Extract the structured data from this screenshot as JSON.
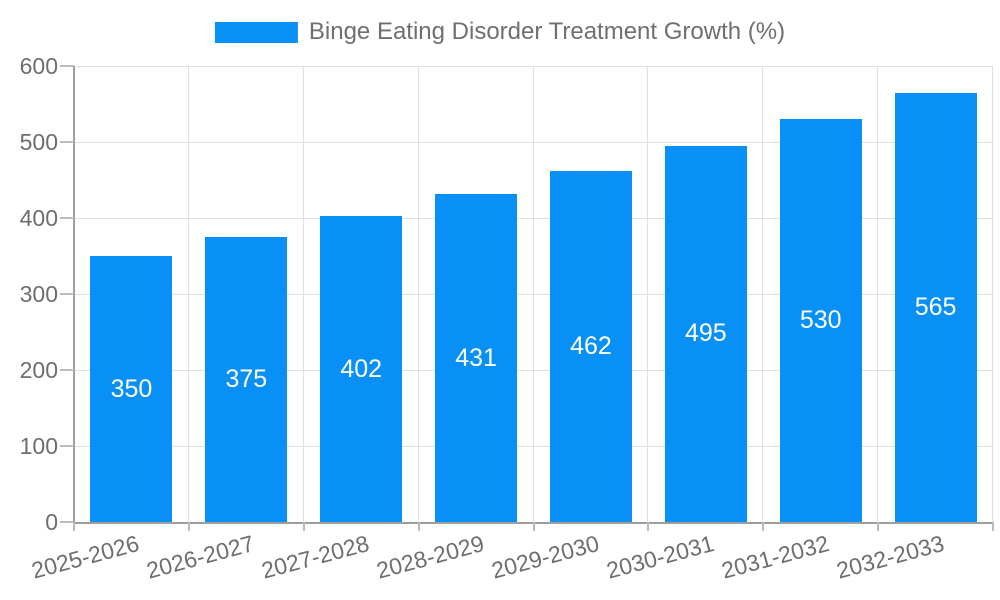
{
  "legend": {
    "label": "Binge Eating Disorder Treatment Growth (%)"
  },
  "chart_data": {
    "type": "bar",
    "title": "Binge Eating Disorder Treatment Growth (%)",
    "series_name": "Binge Eating Disorder Treatment Growth (%)",
    "categories": [
      "2025-2026",
      "2026-2027",
      "2027-2028",
      "2028-2029",
      "2029-2030",
      "2030-2031",
      "2031-2032",
      "2032-2033"
    ],
    "values": [
      350,
      375,
      402,
      431,
      462,
      495,
      530,
      565
    ],
    "xlabel": "",
    "ylabel": "",
    "ylim": [
      0,
      600
    ],
    "yticks": [
      0,
      100,
      200,
      300,
      400,
      500,
      600
    ],
    "grid": true,
    "legend_position": "top-center",
    "x_label_rotation_deg": -15,
    "colors": {
      "bar": "#0990f6",
      "value_label": "#ffffff",
      "axis_line": "#9e9e9e",
      "gridline": "#e0e0e0",
      "tick": "#bbbbbb",
      "axis_label": "#6e6e6e"
    }
  }
}
